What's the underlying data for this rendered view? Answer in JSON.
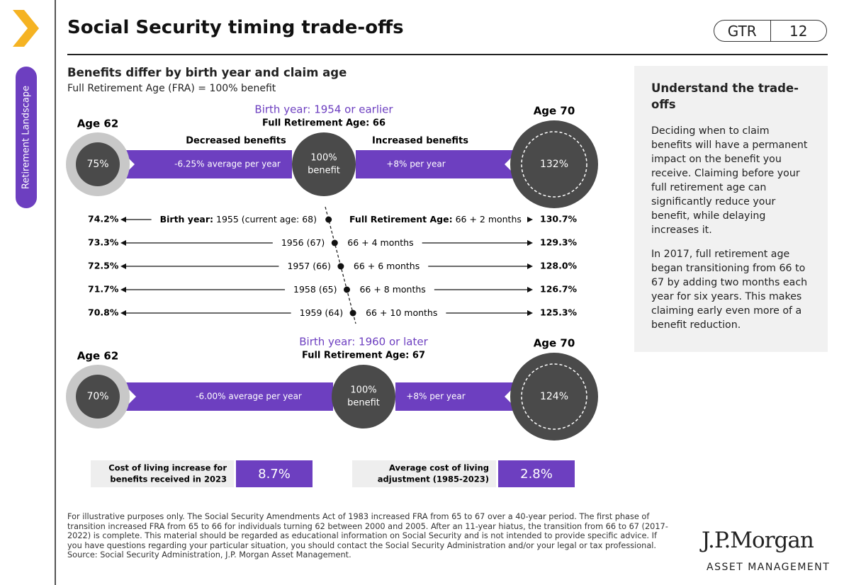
{
  "sidebar": {
    "label": "Retirement Landscape"
  },
  "header": {
    "title": "Social Security timing trade-offs",
    "section": "GTR",
    "page": "12"
  },
  "diagram": {
    "title": "Benefits differ by birth year and claim age",
    "subtitle": "Full Retirement Age (FRA) = 100% benefit",
    "decreased_label": "Decreased benefits",
    "increased_label": "Increased benefits",
    "groups": [
      {
        "birth_year": "Birth year: 1954 or earlier",
        "fra": "Full Retirement Age: 66",
        "left_age": "Age 62",
        "left_value": "75%",
        "left_rate": "-6.25% average per year",
        "center_value": "100%",
        "center_label": "benefit",
        "right_rate": "+8% per year",
        "right_age": "Age 70",
        "right_value": "132%"
      },
      {
        "birth_year": "Birth year: 1960 or later",
        "fra": "Full Retirement Age: 67",
        "left_age": "Age 62",
        "left_value": "70%",
        "left_rate": "-6.00% average per year",
        "center_value": "100%",
        "center_label": "benefit",
        "right_rate": "+8% per year",
        "right_age": "Age 70",
        "right_value": "124%"
      }
    ],
    "rows_first": {
      "birth_prefix": "Birth year:",
      "fra_prefix": "Full Retirement Age:"
    },
    "rows": [
      {
        "left_value": "74.2%",
        "birth": "1955 (current age: 68)",
        "fra": "66 + 2 months",
        "right_value": "130.7%"
      },
      {
        "left_value": "73.3%",
        "birth": "1956 (67)",
        "fra": "66 + 4 months",
        "right_value": "129.3%"
      },
      {
        "left_value": "72.5%",
        "birth": "1957 (66)",
        "fra": "66 + 6 months",
        "right_value": "128.0%"
      },
      {
        "left_value": "71.7%",
        "birth": "1958 (65)",
        "fra": "66 + 8 months",
        "right_value": "126.7%"
      },
      {
        "left_value": "70.8%",
        "birth": "1959 (64)",
        "fra": "66 + 10 months",
        "right_value": "125.3%"
      }
    ],
    "stats": [
      {
        "label_lines": [
          "Cost of living increase for",
          "benefits received in 2023"
        ],
        "value": "8.7%"
      },
      {
        "label_lines": [
          "Average cost of living",
          "adjustment (1985-2023)"
        ],
        "value": "2.8%"
      }
    ]
  },
  "panel": {
    "heading": "Understand the trade-offs",
    "paragraphs": [
      "Deciding when to claim benefits will have a permanent impact on the benefit you receive. Claiming before your full retirement age can significantly reduce your benefit, while delaying increases it.",
      "In 2017, full retirement age began transitioning from 66 to 67 by adding two months each year for six years. This makes claiming early even more of a benefit reduction."
    ]
  },
  "footer": {
    "note": "For illustrative purposes only. The Social Security Amendments Act of 1983 increased FRA from 65 to 67 over a 40-year period. The first phase of transition increased FRA from 65 to 66 for individuals turning 62 between 2000 and 2005. After an 11-year hiatus, the transition from 66 to 67 (2017-2022) is complete. This material should be regarded as educational information on Social Security and is not intended to provide specific advice. If you have questions regarding your particular situation, you should contact the Social Security Administration and/or your legal or tax professional.",
    "source": "Source: Social Security Administration, J.P. Morgan Asset Management.",
    "logo": "J.P.Morgan",
    "logo_sub": "ASSET MANAGEMENT"
  }
}
